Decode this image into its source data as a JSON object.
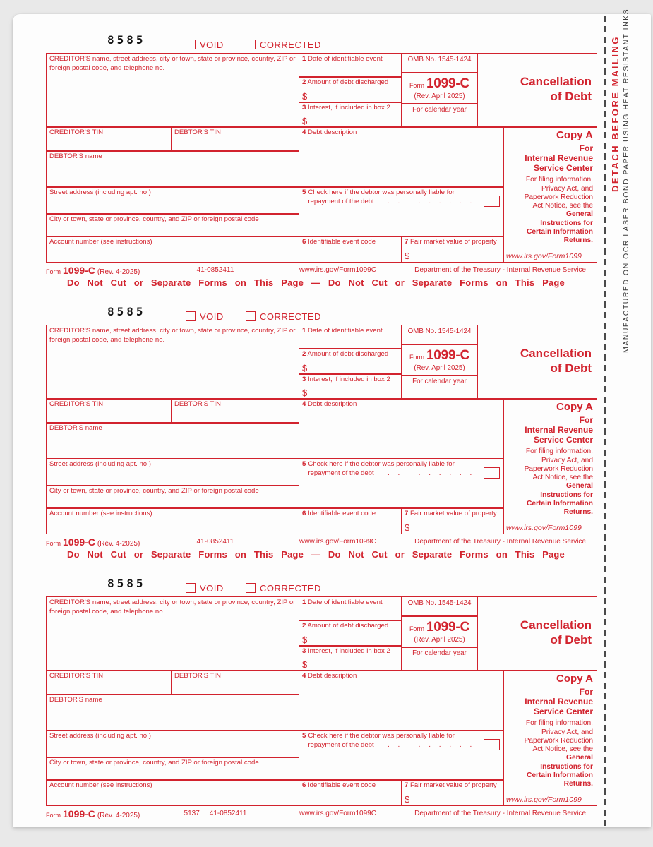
{
  "page": {
    "edge": {
      "detach": "DETACH BEFORE MAILING",
      "manufactured": "MANUFACTURED ON OCR LASER BOND PAPER USING HEAT RESISTANT INKS"
    },
    "colors": {
      "form_red": "#d2232e",
      "print_code_black": "#161616",
      "paper": "#fdfdfd",
      "background": "#e9e9e9"
    }
  },
  "form": {
    "print_code": "8585",
    "void_label": "VOID",
    "corrected_label": "CORRECTED",
    "creditor_block_label": "CREDITOR'S name, street address, city or town, state or province, country, ZIP or foreign postal code, and telephone no.",
    "omb": "OMB No. 1545-1424",
    "form_word": "Form",
    "form_number": "1099-C",
    "revision": "(Rev. April 2025)",
    "calendar_year": "For calendar year",
    "title": "Cancellation\nof Debt",
    "boxes": {
      "box1": {
        "num": "1",
        "label": "Date of identifiable event"
      },
      "box2": {
        "num": "2",
        "label": "Amount of debt discharged",
        "dollar": "$"
      },
      "box3": {
        "num": "3",
        "label": "Interest, if included in box 2",
        "dollar": "$"
      },
      "box4": {
        "num": "4",
        "label": "Debt description"
      },
      "box5": {
        "num": "5",
        "label": "Check here if the debtor was personally liable for\nrepayment of the debt",
        "dots": ". . . . . . . . ."
      },
      "box6": {
        "num": "6",
        "label": "Identifiable event code"
      },
      "box7": {
        "num": "7",
        "label": "Fair market value of property",
        "dollar": "$"
      }
    },
    "left_fields": {
      "creditor_tin": "CREDITOR'S TIN",
      "debtor_tin": "DEBTOR'S TIN",
      "debtor_name": "DEBTOR'S name",
      "street": "Street address (including apt. no.)",
      "city": "City or town, state or province, country, and ZIP or foreign postal code",
      "account": "Account number (see instructions)"
    },
    "copy_a": {
      "title": "Copy A",
      "recipient": "For\nInternal Revenue\nService Center",
      "notice": "For filing information,\nPrivacy Act, and\nPaperwork Reduction\nAct Notice, see the",
      "instructions": "General\nInstructions for\nCertain Information\nReturns.",
      "url": "www.irs.gov/Form1099"
    },
    "footer": {
      "form_word": "Form",
      "form_number": "1099-C",
      "revision": "(Rev. 4-2025)",
      "catalog_number": "41-0852411",
      "url": "www.irs.gov/Form1099C",
      "department": "Department of the Treasury - Internal Revenue Service"
    },
    "do_not_cut": "Do Not Cut or Separate Forms on This Page — Do Not Cut or Separate Forms on This Page"
  },
  "copies": [
    {
      "plate_number": ""
    },
    {
      "plate_number": ""
    },
    {
      "plate_number": "5137"
    }
  ]
}
